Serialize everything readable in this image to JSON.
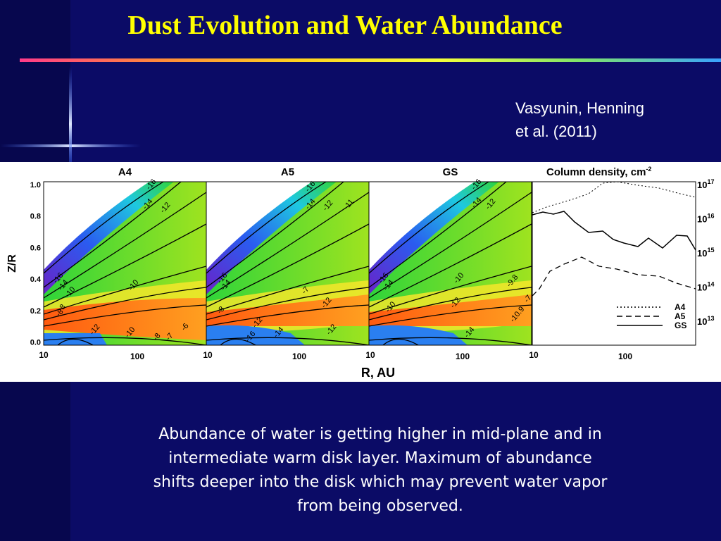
{
  "title": "Dust Evolution and Water Abundance",
  "citation": [
    "Vasyunin, Henning",
    "et al. (2011)"
  ],
  "figure": {
    "panels": [
      {
        "title": "A4",
        "contour_labels": [
          "-16",
          "-14",
          "-12",
          "-16",
          "-14",
          "-10",
          "-10",
          "-8",
          "-8",
          "-12",
          "-6",
          "-10",
          "-8",
          "-7"
        ]
      },
      {
        "title": "A5",
        "contour_labels": [
          "-16",
          "-14",
          "-12",
          "-11",
          "-16",
          "-14",
          "-7",
          "-12",
          "-8",
          "-12",
          "-14",
          "-12",
          "-16"
        ]
      },
      {
        "title": "GS",
        "contour_labels": [
          "-16",
          "-14",
          "-12",
          "-16",
          "-14",
          "-10",
          "-9.8",
          "-12",
          "-10",
          "-14",
          "-7",
          "-10.9"
        ]
      }
    ],
    "column_panel": {
      "title": "Column density, cm",
      "title_exp": "-2",
      "yticks": [
        {
          "base": "10",
          "exp": "17"
        },
        {
          "base": "10",
          "exp": "16"
        },
        {
          "base": "10",
          "exp": "15"
        },
        {
          "base": "10",
          "exp": "14"
        },
        {
          "base": "10",
          "exp": "13"
        }
      ],
      "legend": [
        "A4",
        "A5",
        "GS"
      ]
    },
    "y_axis": {
      "label": "Z/R",
      "ticks": [
        "1.0",
        "0.8",
        "0.6",
        "0.4",
        "0.2",
        "0.0"
      ]
    },
    "x_axis": {
      "label": "R, AU",
      "ticks": [
        "10",
        "100"
      ]
    }
  },
  "caption": "Abundance of water is getting higher in mid-plane and in intermediate warm disk layer. Maximum of abundance shifts deeper into the disk which may prevent water vapor from being observed."
}
